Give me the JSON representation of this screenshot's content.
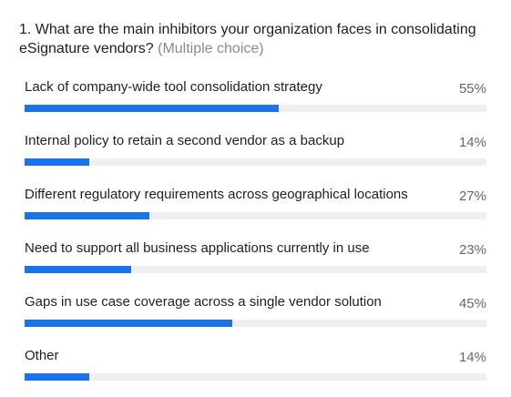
{
  "question": {
    "text": "1. What are the main inhibitors your organization faces in consolidating eSignature vendors?",
    "hint": "(Multiple choice)"
  },
  "colors": {
    "bar": "#1a73e8",
    "track": "#efeff2"
  },
  "chart_data": {
    "type": "bar",
    "orientation": "horizontal",
    "title": "1. What are the main inhibitors your organization faces in consolidating eSignature vendors?",
    "categories": [
      "Lack of company-wide tool consolidation strategy",
      "Internal policy to retain a second vendor as a backup",
      "Different regulatory requirements across geographical locations",
      "Need to support all business applications currently in use",
      "Gaps in use case coverage across a single vendor solution",
      "Other"
    ],
    "values": [
      55,
      14,
      27,
      23,
      45,
      14
    ],
    "value_labels": [
      "55%",
      "14%",
      "27%",
      "23%",
      "45%",
      "14%"
    ],
    "unit": "%",
    "xlim": [
      0,
      100
    ],
    "grid": false
  }
}
